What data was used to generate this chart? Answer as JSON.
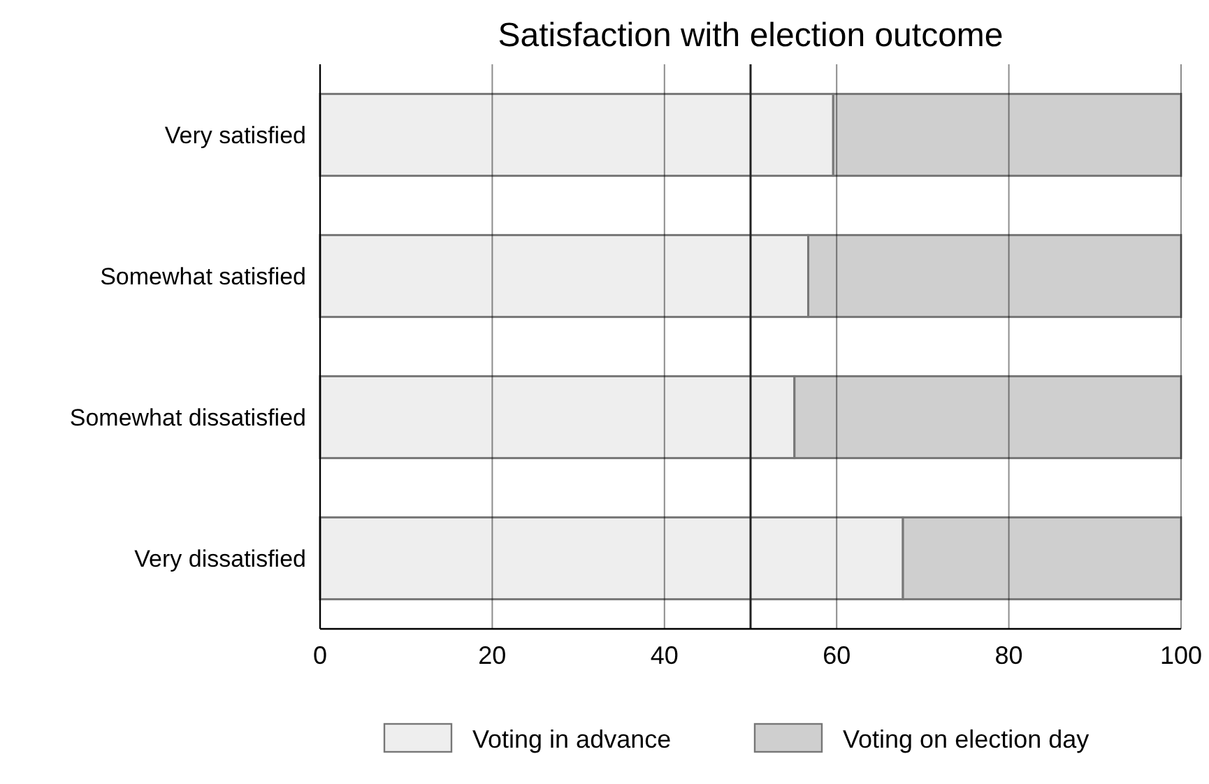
{
  "chart_data": {
    "type": "bar",
    "title": "Satisfaction with election outcome",
    "orientation": "horizontal",
    "stacked": true,
    "categories": [
      "Very satisfied",
      "Somewhat satisfied",
      "Somewhat dissatisfied",
      "Very dissatisfied"
    ],
    "series": [
      {
        "name": "Voting in advance",
        "color": "#eeeeee",
        "values": [
          59.6,
          56.7,
          55.1,
          67.7
        ]
      },
      {
        "name": "Voting on election day",
        "color": "#cfcfcf",
        "values": [
          40.4,
          43.3,
          44.9,
          32.3
        ]
      }
    ],
    "xlim": [
      0,
      100
    ],
    "xticks": [
      0,
      20,
      40,
      60,
      80,
      100
    ],
    "grid": "x",
    "legend": "bottom",
    "ref_lines": [
      {
        "axis": "x",
        "value": 50,
        "color": "#222222"
      }
    ]
  }
}
